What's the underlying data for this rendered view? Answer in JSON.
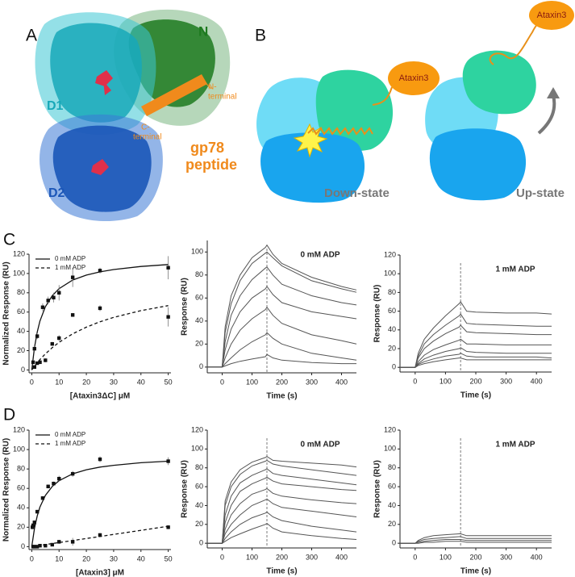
{
  "panel_a": {
    "label": "A",
    "domains": {
      "d1": "D1",
      "d2": "D2",
      "n": "N"
    },
    "peptide": [
      "gp78",
      "peptide"
    ],
    "c_terminal": [
      "C-",
      "terminal"
    ],
    "n_terminal": [
      "N-",
      "terminal"
    ]
  },
  "panel_b": {
    "label": "B",
    "down": {
      "partner": "Ataxin3",
      "state": "Down-state"
    },
    "up": {
      "partner": "Ataxin3",
      "state": "Up-state"
    }
  },
  "panel_c_label": "C",
  "panel_d_label": "D",
  "chart_data": [
    {
      "type": "scatter",
      "xlabel": "[Ataxin3ΔC] μM",
      "ylabel": "Normalized Response (RU)",
      "xlim": [
        -1,
        51
      ],
      "xticks": [
        0,
        10,
        20,
        30,
        40,
        50
      ],
      "ylim": [
        -3,
        120
      ],
      "yticks": [
        0,
        20,
        40,
        60,
        80,
        100,
        120
      ],
      "legend": "upper left",
      "series": [
        {
          "name": "0 mM ADP",
          "color": "#111",
          "line_style": "solid",
          "x": [
            0.5,
            1,
            2,
            4,
            6,
            8,
            10,
            15,
            25,
            50
          ],
          "values": [
            8,
            22,
            35,
            65,
            72,
            75,
            80,
            96,
            103,
            106
          ],
          "errors": [
            2,
            3,
            3,
            4,
            4,
            5,
            8,
            10,
            3,
            12
          ],
          "fit_x": [
            0,
            1,
            2,
            3,
            5,
            7.5,
            10,
            15,
            20,
            25,
            30,
            40,
            50
          ],
          "fit_values": [
            0,
            23.6,
            39.3,
            50.6,
            65.6,
            77,
            84.3,
            93.2,
            98.3,
            101.7,
            104.1,
            107.3,
            109.3
          ]
        },
        {
          "name": "1 mM ADP",
          "color": "#111",
          "line_style": "dashed",
          "x": [
            1,
            2,
            3,
            5,
            7.5,
            10,
            15,
            25,
            50
          ],
          "values": [
            3,
            7,
            8,
            10,
            27,
            33,
            57,
            64,
            55
          ],
          "errors": [
            1,
            1,
            1,
            2,
            2,
            3,
            2,
            3,
            10
          ],
          "fit_x": [
            0,
            1,
            2,
            3,
            5,
            7.5,
            10,
            15,
            20,
            25,
            30,
            40,
            50
          ],
          "fit_values": [
            0,
            3.8,
            7.4,
            10.7,
            16.7,
            23.1,
            28.6,
            37.5,
            44.4,
            50,
            54.5,
            61.5,
            66.7
          ]
        }
      ]
    },
    {
      "type": "line",
      "title": "0 mM ADP",
      "xlabel": "Time (s)",
      "ylabel": "Response (RU)",
      "xlim": [
        -50,
        450
      ],
      "xticks": [
        0,
        100,
        200,
        300,
        400
      ],
      "ylim": [
        -5,
        110
      ],
      "yticks": [
        0,
        20,
        40,
        60,
        80,
        100
      ],
      "marker_x": 150,
      "x": [
        -50,
        0,
        10,
        30,
        60,
        100,
        145,
        150,
        170,
        200,
        300,
        400,
        450
      ],
      "series": [
        {
          "color": "#555",
          "values": [
            0,
            0,
            35,
            62,
            80,
            95,
            104,
            106,
            98,
            90,
            78,
            70,
            67
          ]
        },
        {
          "color": "#555",
          "values": [
            0,
            0,
            30,
            55,
            75,
            90,
            99,
            100,
            95,
            88,
            75,
            68,
            65
          ]
        },
        {
          "color": "#555",
          "values": [
            0,
            0,
            22,
            45,
            62,
            76,
            86,
            87,
            80,
            72,
            62,
            56,
            54
          ]
        },
        {
          "color": "#555",
          "values": [
            0,
            0,
            15,
            33,
            48,
            60,
            68,
            70,
            63,
            56,
            48,
            44,
            42
          ]
        },
        {
          "color": "#555",
          "values": [
            0,
            0,
            8,
            20,
            32,
            42,
            50,
            52,
            45,
            38,
            28,
            23,
            20
          ]
        },
        {
          "color": "#555",
          "values": [
            0,
            0,
            3,
            8,
            15,
            22,
            28,
            30,
            25,
            20,
            12,
            8,
            6
          ]
        },
        {
          "color": "#555",
          "values": [
            0,
            0,
            1,
            3,
            5,
            7,
            9,
            11,
            8,
            6,
            4,
            3,
            3
          ]
        }
      ]
    },
    {
      "type": "line",
      "title": "1 mM ADP",
      "xlabel": "Time (s)",
      "ylabel": "Response (RU)",
      "xlim": [
        -50,
        450
      ],
      "xticks": [
        0,
        100,
        200,
        300,
        400
      ],
      "ylim": [
        -5,
        120
      ],
      "yticks": [
        0,
        20,
        40,
        60,
        80,
        100,
        120
      ],
      "marker_x": 150,
      "x": [
        -50,
        0,
        10,
        30,
        60,
        100,
        145,
        150,
        170,
        200,
        300,
        400,
        450
      ],
      "series": [
        {
          "color": "#555",
          "values": [
            0,
            0,
            15,
            30,
            42,
            55,
            68,
            70,
            60,
            59,
            58,
            58,
            57
          ]
        },
        {
          "color": "#555",
          "values": [
            0,
            0,
            12,
            25,
            35,
            45,
            55,
            57,
            47,
            46,
            45,
            44,
            44
          ]
        },
        {
          "color": "#555",
          "values": [
            0,
            0,
            10,
            20,
            28,
            36,
            43,
            45,
            38,
            37,
            36,
            35,
            35
          ]
        },
        {
          "color": "#555",
          "values": [
            0,
            0,
            6,
            13,
            19,
            24,
            29,
            30,
            25,
            25,
            24,
            24,
            24
          ]
        },
        {
          "color": "#555",
          "values": [
            0,
            0,
            4,
            9,
            13,
            17,
            20,
            21,
            17,
            16,
            15,
            15,
            15
          ]
        },
        {
          "color": "#555",
          "values": [
            0,
            0,
            3,
            6,
            9,
            12,
            14,
            15,
            12,
            11,
            11,
            11,
            10
          ]
        },
        {
          "color": "#555",
          "values": [
            0,
            0,
            2,
            4,
            6,
            8,
            10,
            10,
            8,
            8,
            8,
            8,
            8
          ]
        }
      ]
    },
    {
      "type": "scatter",
      "xlabel": "[Ataxin3] μM",
      "ylabel": "Normalized Response (RU)",
      "xlim": [
        -1,
        51
      ],
      "xticks": [
        0,
        10,
        20,
        30,
        40,
        50
      ],
      "ylim": [
        -3,
        120
      ],
      "yticks": [
        0,
        20,
        40,
        60,
        80,
        100,
        120
      ],
      "legend": "upper left",
      "series": [
        {
          "name": "0 mM ADP",
          "color": "#111",
          "line_style": "solid",
          "x": [
            0.25,
            0.5,
            1,
            2,
            4,
            6,
            8,
            10,
            15,
            25,
            50
          ],
          "values": [
            20,
            22,
            25,
            36,
            50,
            62,
            65,
            70,
            75,
            90,
            88
          ],
          "errors": [
            2,
            2,
            2,
            2,
            2,
            2,
            2,
            3,
            3,
            3,
            4
          ],
          "fit_x": [
            0,
            1,
            2,
            3,
            5,
            7.5,
            10,
            15,
            20,
            25,
            30,
            40,
            50
          ],
          "fit_values": [
            0,
            19,
            31.7,
            40.7,
            52.8,
            62,
            67.9,
            75,
            79.2,
            81.9,
            83.8,
            86.4,
            88
          ]
        },
        {
          "name": "1 mM ADP",
          "color": "#111",
          "line_style": "dashed",
          "x": [
            0.5,
            1,
            2,
            3,
            5,
            7.5,
            10,
            15,
            25,
            50
          ],
          "values": [
            0,
            0,
            0,
            1,
            1,
            2,
            5,
            5,
            12,
            20
          ],
          "errors": [
            1,
            1,
            1,
            1,
            1,
            1,
            2,
            4,
            2,
            2
          ],
          "fit_x": [
            0,
            1,
            2,
            3,
            5,
            7.5,
            10,
            15,
            20,
            25,
            30,
            40,
            50
          ],
          "fit_values": [
            0,
            0.4,
            0.8,
            1.3,
            2.1,
            3.2,
            4.2,
            6.3,
            8.4,
            10.5,
            12.6,
            16.8,
            21
          ]
        }
      ]
    },
    {
      "type": "line",
      "title": "0 mM ADP",
      "xlabel": "Time (s)",
      "ylabel": "Response (RU)",
      "xlim": [
        -50,
        450
      ],
      "xticks": [
        0,
        100,
        200,
        300,
        400
      ],
      "ylim": [
        -5,
        120
      ],
      "yticks": [
        0,
        20,
        40,
        60,
        80,
        100,
        120
      ],
      "marker_x": 150,
      "x": [
        -50,
        0,
        10,
        30,
        60,
        100,
        145,
        150,
        170,
        200,
        300,
        400,
        450
      ],
      "series": [
        {
          "color": "#555",
          "values": [
            0,
            0,
            45,
            65,
            78,
            86,
            91,
            92,
            88,
            87,
            85,
            83,
            81
          ]
        },
        {
          "color": "#555",
          "values": [
            0,
            0,
            40,
            60,
            73,
            82,
            87,
            88,
            84,
            82,
            78,
            74,
            72
          ]
        },
        {
          "color": "#555",
          "values": [
            0,
            0,
            30,
            50,
            64,
            72,
            78,
            79,
            74,
            72,
            68,
            64,
            62
          ]
        },
        {
          "color": "#555",
          "values": [
            0,
            0,
            22,
            40,
            55,
            63,
            69,
            70,
            66,
            63,
            60,
            57,
            56
          ]
        },
        {
          "color": "#555",
          "values": [
            0,
            0,
            15,
            30,
            42,
            52,
            57,
            58,
            53,
            50,
            46,
            43,
            42
          ]
        },
        {
          "color": "#555",
          "values": [
            0,
            0,
            10,
            20,
            30,
            40,
            46,
            47,
            42,
            38,
            34,
            30,
            28
          ]
        },
        {
          "color": "#555",
          "values": [
            0,
            0,
            5,
            12,
            20,
            27,
            32,
            33,
            28,
            24,
            18,
            14,
            12
          ]
        },
        {
          "color": "#555",
          "values": [
            0,
            0,
            2,
            6,
            10,
            15,
            20,
            21,
            16,
            12,
            8,
            5,
            4
          ]
        }
      ]
    },
    {
      "type": "line",
      "title": "1 mM ADP",
      "xlabel": "Time (s)",
      "ylabel": "Response (RU)",
      "xlim": [
        -50,
        450
      ],
      "xticks": [
        0,
        100,
        200,
        300,
        400
      ],
      "ylim": [
        -5,
        120
      ],
      "yticks": [
        0,
        20,
        40,
        60,
        80,
        100,
        120
      ],
      "marker_x": 150,
      "x": [
        -50,
        0,
        10,
        30,
        60,
        100,
        145,
        150,
        170,
        200,
        300,
        400,
        450
      ],
      "series": [
        {
          "color": "#555",
          "values": [
            0,
            0,
            3,
            6,
            8,
            9,
            10,
            10,
            8,
            8,
            8,
            8,
            8
          ]
        },
        {
          "color": "#555",
          "values": [
            0,
            0,
            2,
            4,
            5,
            6,
            7,
            7,
            5,
            5,
            5,
            5,
            5
          ]
        },
        {
          "color": "#555",
          "values": [
            0,
            0,
            1,
            2,
            3,
            4,
            4,
            4,
            3,
            3,
            3,
            3,
            3
          ]
        },
        {
          "color": "#555",
          "values": [
            0,
            0,
            0,
            1,
            1,
            2,
            2,
            2,
            1,
            1,
            1,
            1,
            1
          ]
        }
      ]
    }
  ]
}
